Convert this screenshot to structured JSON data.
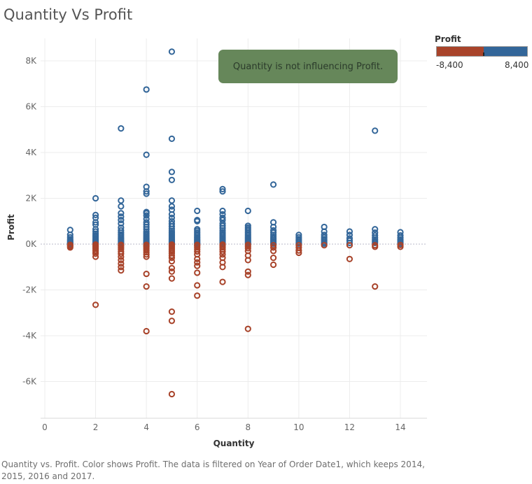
{
  "title": "Quantity Vs Profit",
  "caption": "Quantity vs. Profit.  Color shows Profit. The data is filtered on Year of Order Date1, which keeps 2014, 2015, 2016 and 2017.",
  "legend": {
    "title": "Profit",
    "min_label": "-8,400",
    "max_label": "8,400",
    "negative_color": "#a8432a",
    "positive_color": "#336699"
  },
  "annotation": {
    "text": "Quantity is not influencing Profit.",
    "background": "#66875a"
  },
  "chart_data": {
    "type": "scatter",
    "title": "Quantity Vs Profit",
    "xlabel": "Quantity",
    "ylabel": "Profit",
    "xlim": [
      0,
      15
    ],
    "ylim": [
      -7500,
      8800
    ],
    "x_ticks": [
      0,
      2,
      4,
      6,
      8,
      10,
      12,
      14
    ],
    "x_tick_labels": [
      "0",
      "2",
      "4",
      "6",
      "8",
      "10",
      "12",
      "14"
    ],
    "y_ticks": [
      -6000,
      -4000,
      -2000,
      0,
      2000,
      4000,
      6000,
      8000
    ],
    "y_tick_labels": [
      "-6K",
      "-4K",
      "-2K",
      "0K",
      "2K",
      "4K",
      "6K",
      "8K"
    ],
    "grid": true,
    "marker": "hollow-circle",
    "color_field": "Profit",
    "series": [
      {
        "name": "Quantity 1",
        "x": 1,
        "profit": [
          620,
          410,
          300,
          220,
          160,
          120,
          80,
          50,
          20,
          0,
          -30,
          -60,
          -100,
          -150
        ]
      },
      {
        "name": "Quantity 2",
        "x": 2,
        "profit": [
          2000,
          1270,
          1150,
          950,
          850,
          650,
          550,
          450,
          380,
          320,
          260,
          200,
          160,
          120,
          80,
          50,
          20,
          -20,
          -60,
          -100,
          -150,
          -200,
          -280,
          -350,
          -420,
          -550,
          -2650
        ]
      },
      {
        "name": "Quantity 3",
        "x": 3,
        "profit": [
          5050,
          1900,
          1650,
          1350,
          1200,
          1050,
          900,
          720,
          600,
          500,
          420,
          350,
          280,
          220,
          160,
          110,
          60,
          20,
          -30,
          -80,
          -150,
          -220,
          -320,
          -420,
          -550,
          -700,
          -850,
          -1000,
          -1150
        ]
      },
      {
        "name": "Quantity 4",
        "x": 4,
        "profit": [
          6750,
          3900,
          2500,
          2300,
          2200,
          1400,
          1350,
          1250,
          1100,
          950,
          850,
          750,
          650,
          550,
          470,
          400,
          340,
          280,
          220,
          170,
          120,
          80,
          40,
          10,
          -30,
          -80,
          -130,
          -200,
          -270,
          -350,
          -450,
          -550,
          -1300,
          -1850,
          -3800
        ]
      },
      {
        "name": "Quantity 5",
        "x": 5,
        "profit": [
          8400,
          4600,
          3150,
          2800,
          1900,
          1650,
          1500,
          1300,
          1150,
          1000,
          880,
          770,
          670,
          580,
          500,
          430,
          370,
          310,
          250,
          200,
          150,
          100,
          60,
          20,
          -20,
          -70,
          -120,
          -180,
          -250,
          -320,
          -400,
          -500,
          -600,
          -750,
          -1050,
          -1200,
          -1500,
          -2950,
          -3350,
          -6550
        ]
      },
      {
        "name": "Quantity 6",
        "x": 6,
        "profit": [
          1450,
          1050,
          1000,
          650,
          580,
          500,
          430,
          370,
          300,
          250,
          200,
          150,
          100,
          60,
          20,
          -30,
          -80,
          -150,
          -230,
          -320,
          -450,
          -650,
          -800,
          -950,
          -1250,
          -1800,
          -2250
        ]
      },
      {
        "name": "Quantity 7",
        "x": 7,
        "profit": [
          2400,
          2300,
          1450,
          1300,
          1150,
          1050,
          900,
          800,
          700,
          600,
          520,
          440,
          370,
          300,
          240,
          180,
          130,
          80,
          30,
          -20,
          -80,
          -150,
          -230,
          -330,
          -450,
          -600,
          -800,
          -1000,
          -1650
        ]
      },
      {
        "name": "Quantity 8",
        "x": 8,
        "profit": [
          1450,
          800,
          720,
          650,
          580,
          500,
          430,
          370,
          300,
          240,
          180,
          120,
          70,
          20,
          -30,
          -100,
          -180,
          -300,
          -500,
          -700,
          -1200,
          -1350,
          -3700
        ]
      },
      {
        "name": "Quantity 9",
        "x": 9,
        "profit": [
          2600,
          950,
          750,
          600,
          500,
          400,
          320,
          250,
          180,
          120,
          70,
          20,
          -50,
          -150,
          -300,
          -600,
          -900
        ]
      },
      {
        "name": "Quantity 10",
        "x": 10,
        "profit": [
          400,
          300,
          220,
          150,
          80,
          20,
          -50,
          -150,
          -280,
          -380
        ]
      },
      {
        "name": "Quantity 11",
        "x": 11,
        "profit": [
          750,
          550,
          400,
          300,
          220,
          150,
          80,
          20,
          -50
        ]
      },
      {
        "name": "Quantity 12",
        "x": 12,
        "profit": [
          550,
          400,
          250,
          150,
          50,
          -50,
          -650
        ]
      },
      {
        "name": "Quantity 13",
        "x": 13,
        "profit": [
          4950,
          650,
          500,
          380,
          280,
          200,
          120,
          50,
          -50,
          -120,
          -1850
        ]
      },
      {
        "name": "Quantity 14",
        "x": 14,
        "profit": [
          520,
          380,
          280,
          200,
          140,
          80,
          20,
          -40,
          -120
        ]
      }
    ]
  }
}
